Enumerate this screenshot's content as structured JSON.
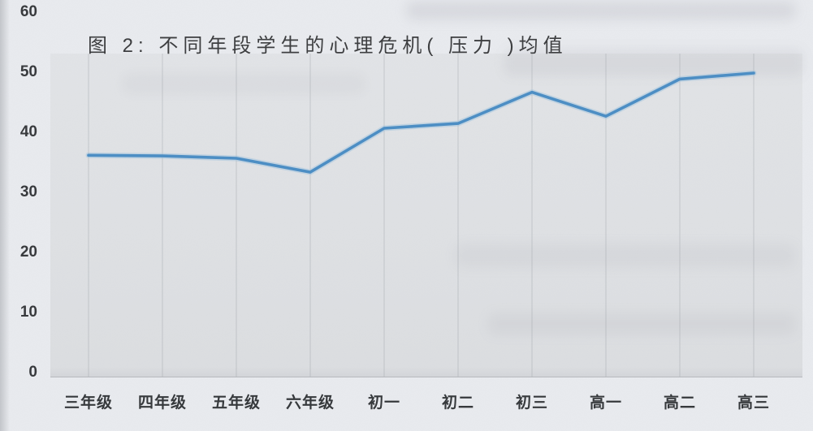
{
  "page": {
    "kind": "scanned book page with statistics figure",
    "background_color": "#e9ebef",
    "plot_background_color": "#dfe1e4",
    "text_color": "#35373a"
  },
  "chart_data": {
    "type": "line",
    "title": "图 2: 不同年段学生的心理危机( 压力 )均值",
    "categories": [
      "三年级",
      "四年级",
      "五年级",
      "六年级",
      "初一",
      "初二",
      "初三",
      "高一",
      "高二",
      "高三"
    ],
    "series": [
      {
        "name": "心理危机(压力)均值",
        "values": [
          35.9,
          35.8,
          35.4,
          33.1,
          40.4,
          41.2,
          46.4,
          42.4,
          48.6,
          49.6
        ]
      }
    ],
    "xlabel": "",
    "ylabel": "",
    "ylim": [
      0,
      60
    ],
    "yticks": [
      "0",
      "10",
      "20",
      "30",
      "40",
      "50",
      "60"
    ],
    "grid": "faint vertical gridlines at each category",
    "legend": "none",
    "line_color": "#4a8dc4",
    "line_halo_color": "#9cc0de",
    "markers": "none"
  }
}
